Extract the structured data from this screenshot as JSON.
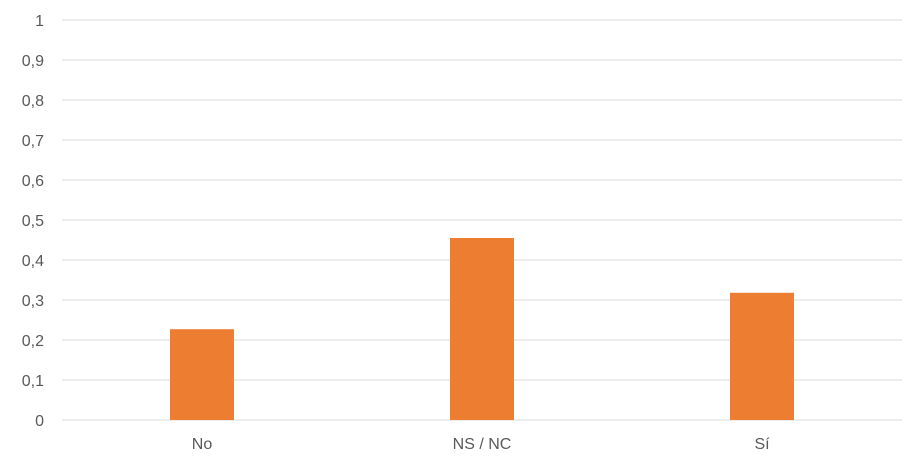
{
  "chart_data": {
    "type": "bar",
    "categories": [
      "No",
      "NS / NC",
      "Sí"
    ],
    "values": [
      0.227,
      0.455,
      0.318
    ],
    "ylim": [
      0,
      1
    ],
    "yticks": [
      "0",
      "0,1",
      "0,2",
      "0,3",
      "0,4",
      "0,5",
      "0,6",
      "0,7",
      "0,8",
      "0,9",
      "1"
    ],
    "grid": true,
    "legend": "none",
    "bar_color": "#ED7D31",
    "title": "",
    "xlabel": "",
    "ylabel": ""
  }
}
